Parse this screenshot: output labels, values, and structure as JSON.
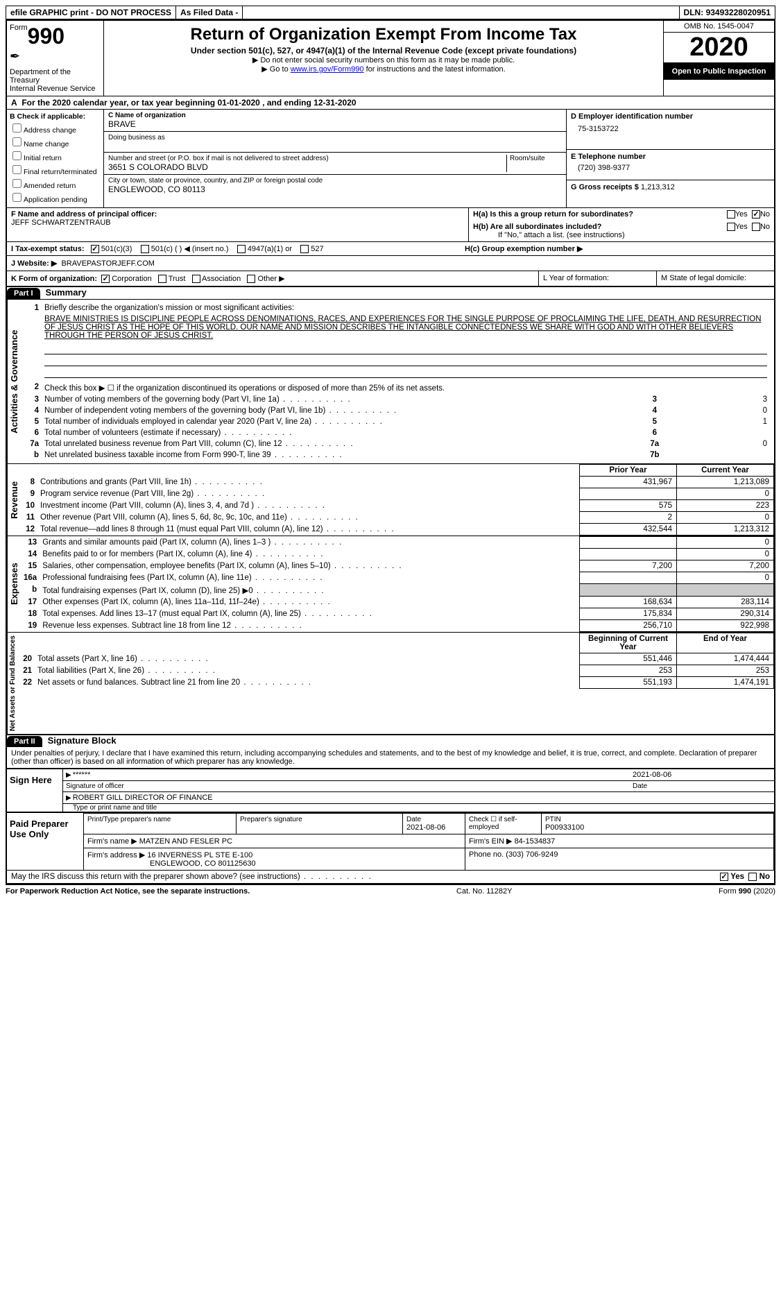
{
  "topbar": {
    "efile": "efile GRAPHIC print - DO NOT PROCESS",
    "asfiled": "As Filed Data -",
    "dln_label": "DLN:",
    "dln": "93493228020951"
  },
  "header": {
    "form_word": "Form",
    "form_num": "990",
    "dept": "Department of the Treasury\nInternal Revenue Service",
    "title": "Return of Organization Exempt From Income Tax",
    "sub": "Under section 501(c), 527, or 4947(a)(1) of the Internal Revenue Code (except private foundations)",
    "line2": "▶ Do not enter social security numbers on this form as it may be made public.",
    "line3_pre": "▶ Go to ",
    "line3_link": "www.irs.gov/Form990",
    "line3_post": " for instructions and the latest information.",
    "omb": "OMB No. 1545-0047",
    "year": "2020",
    "open": "Open to Public Inspection"
  },
  "rowA": {
    "label": "A",
    "text": "For the 2020 calendar year, or tax year beginning 01-01-2020   , and ending 12-31-2020"
  },
  "B": {
    "label": "B Check if applicable:",
    "items": [
      "Address change",
      "Name change",
      "Initial return",
      "Final return/terminated",
      "Amended return",
      "Application pending"
    ]
  },
  "C": {
    "name_label": "C Name of organization",
    "name": "BRAVE",
    "dba_label": "Doing business as",
    "addr_label": "Number and street (or P.O. box if mail is not delivered to street address)",
    "room_label": "Room/suite",
    "addr": "3651 S COLORADO BLVD",
    "city_label": "City or town, state or province, country, and ZIP or foreign postal code",
    "city": "ENGLEWOOD, CO  80113"
  },
  "D": {
    "label": "D Employer identification number",
    "val": "75-3153722"
  },
  "E": {
    "label": "E Telephone number",
    "val": "(720) 398-9377"
  },
  "G": {
    "label": "G Gross receipts $",
    "val": "1,213,312"
  },
  "F": {
    "label": "F  Name and address of principal officer:",
    "val": "JEFF SCHWARTZENTRAUB"
  },
  "H": {
    "a": "H(a)  Is this a group return for subordinates?",
    "b": "H(b)  Are all subordinates included?",
    "b_note": "If \"No,\" attach a list. (see instructions)",
    "c": "H(c)  Group exemption number ▶",
    "yes": "Yes",
    "no": "No"
  },
  "I": {
    "label": "I  Tax-exempt status:",
    "o1": "501(c)(3)",
    "o2": "501(c) (   ) ◀ (insert no.)",
    "o3": "4947(a)(1) or",
    "o4": "527"
  },
  "J": {
    "label": "J  Website: ▶",
    "val": "BRAVEPASTORJEFF.COM"
  },
  "K": {
    "label": "K Form of organization:",
    "o1": "Corporation",
    "o2": "Trust",
    "o3": "Association",
    "o4": "Other ▶"
  },
  "L": "L Year of formation:",
  "M": "M State of legal domicile:",
  "part1": {
    "num": "Part I",
    "title": "Summary"
  },
  "summary": {
    "l1": "Briefly describe the organization's mission or most significant activities:",
    "mission": "BRAVE MINISTRIES IS DISCIPLINE PEOPLE ACROSS DENOMINATIONS, RACES, AND EXPERIENCES FOR THE SINGLE PURPOSE OF PROCLAIMING THE LIFE, DEATH, AND RESURRECTION OF JESUS CHRIST AS THE HOPE OF THIS WORLD. OUR NAME AND MISSION DESCRIBES THE INTANGIBLE CONNECTEDNESS WE SHARE WITH GOD AND WITH OTHER BELIEVERS THROUGH THE PERSON OF JESUS CHRIST.",
    "l2": "Check this box ▶ ☐ if the organization discontinued its operations or disposed of more than 25% of its net assets.",
    "rows": [
      {
        "n": "3",
        "t": "Number of voting members of the governing body (Part VI, line 1a)",
        "lab": "3",
        "v": "3"
      },
      {
        "n": "4",
        "t": "Number of independent voting members of the governing body (Part VI, line 1b)",
        "lab": "4",
        "v": "0"
      },
      {
        "n": "5",
        "t": "Total number of individuals employed in calendar year 2020 (Part V, line 2a)",
        "lab": "5",
        "v": "1"
      },
      {
        "n": "6",
        "t": "Total number of volunteers (estimate if necessary)",
        "lab": "6",
        "v": ""
      },
      {
        "n": "7a",
        "t": "Total unrelated business revenue from Part VIII, column (C), line 12",
        "lab": "7a",
        "v": "0"
      },
      {
        "n": "b",
        "t": "Net unrelated business taxable income from Form 990-T, line 39",
        "lab": "7b",
        "v": ""
      }
    ],
    "col_headers": {
      "prior": "Prior Year",
      "current": "Current Year",
      "boy": "Beginning of Current Year",
      "eoy": "End of Year"
    },
    "revenue": [
      {
        "n": "8",
        "t": "Contributions and grants (Part VIII, line 1h)",
        "p": "431,967",
        "c": "1,213,089"
      },
      {
        "n": "9",
        "t": "Program service revenue (Part VIII, line 2g)",
        "p": "",
        "c": "0"
      },
      {
        "n": "10",
        "t": "Investment income (Part VIII, column (A), lines 3, 4, and 7d )",
        "p": "575",
        "c": "223"
      },
      {
        "n": "11",
        "t": "Other revenue (Part VIII, column (A), lines 5, 6d, 8c, 9c, 10c, and 11e)",
        "p": "2",
        "c": "0"
      },
      {
        "n": "12",
        "t": "Total revenue—add lines 8 through 11 (must equal Part VIII, column (A), line 12)",
        "p": "432,544",
        "c": "1,213,312"
      }
    ],
    "expenses": [
      {
        "n": "13",
        "t": "Grants and similar amounts paid (Part IX, column (A), lines 1–3 )",
        "p": "",
        "c": "0"
      },
      {
        "n": "14",
        "t": "Benefits paid to or for members (Part IX, column (A), line 4)",
        "p": "",
        "c": "0"
      },
      {
        "n": "15",
        "t": "Salaries, other compensation, employee benefits (Part IX, column (A), lines 5–10)",
        "p": "7,200",
        "c": "7,200"
      },
      {
        "n": "16a",
        "t": "Professional fundraising fees (Part IX, column (A), line 11e)",
        "p": "",
        "c": "0"
      },
      {
        "n": "b",
        "t": "Total fundraising expenses (Part IX, column (D), line 25) ▶0",
        "p": "SHADE",
        "c": "SHADE"
      },
      {
        "n": "17",
        "t": "Other expenses (Part IX, column (A), lines 11a–11d, 11f–24e)",
        "p": "168,634",
        "c": "283,114"
      },
      {
        "n": "18",
        "t": "Total expenses. Add lines 13–17 (must equal Part IX, column (A), line 25)",
        "p": "175,834",
        "c": "290,314"
      },
      {
        "n": "19",
        "t": "Revenue less expenses. Subtract line 18 from line 12",
        "p": "256,710",
        "c": "922,998"
      }
    ],
    "netassets": [
      {
        "n": "20",
        "t": "Total assets (Part X, line 16)",
        "p": "551,446",
        "c": "1,474,444"
      },
      {
        "n": "21",
        "t": "Total liabilities (Part X, line 26)",
        "p": "253",
        "c": "253"
      },
      {
        "n": "22",
        "t": "Net assets or fund balances. Subtract line 21 from line 20",
        "p": "551,193",
        "c": "1,474,191"
      }
    ],
    "vlabels": {
      "ag": "Activities & Governance",
      "rev": "Revenue",
      "exp": "Expenses",
      "na": "Net Assets or Fund Balances"
    }
  },
  "part2": {
    "num": "Part II",
    "title": "Signature Block",
    "decl": "Under penalties of perjury, I declare that I have examined this return, including accompanying schedules and statements, and to the best of my knowledge and belief, it is true, correct, and complete. Declaration of preparer (other than officer) is based on all information of which preparer has any knowledge."
  },
  "sign": {
    "here": "Sign Here",
    "stars": "******",
    "sig_label": "Signature of officer",
    "date": "2021-08-06",
    "date_label": "Date",
    "name": "ROBERT GILL DIRECTOR OF FINANCE",
    "name_label": "Type or print name and title"
  },
  "paid": {
    "title": "Paid Preparer Use Only",
    "h1": "Print/Type preparer's name",
    "h2": "Preparer's signature",
    "h3": "Date",
    "h3v": "2021-08-06",
    "h4": "Check ☐ if self-employed",
    "h5": "PTIN",
    "h5v": "P00933100",
    "firm_label": "Firm's name    ▶",
    "firm": "MATZEN AND FESLER PC",
    "ein_label": "Firm's EIN ▶",
    "ein": "84-1534837",
    "addr_label": "Firm's address ▶",
    "addr1": "16 INVERNESS PL STE E-100",
    "addr2": "ENGLEWOOD, CO  801125630",
    "phone_label": "Phone no.",
    "phone": "(303) 706-9249"
  },
  "discuss": {
    "q": "May the IRS discuss this return with the preparer shown above? (see instructions)",
    "yes": "Yes",
    "no": "No"
  },
  "footer": {
    "left": "For Paperwork Reduction Act Notice, see the separate instructions.",
    "mid": "Cat. No. 11282Y",
    "right_pre": "Form ",
    "right_b": "990",
    "right_post": " (2020)"
  }
}
